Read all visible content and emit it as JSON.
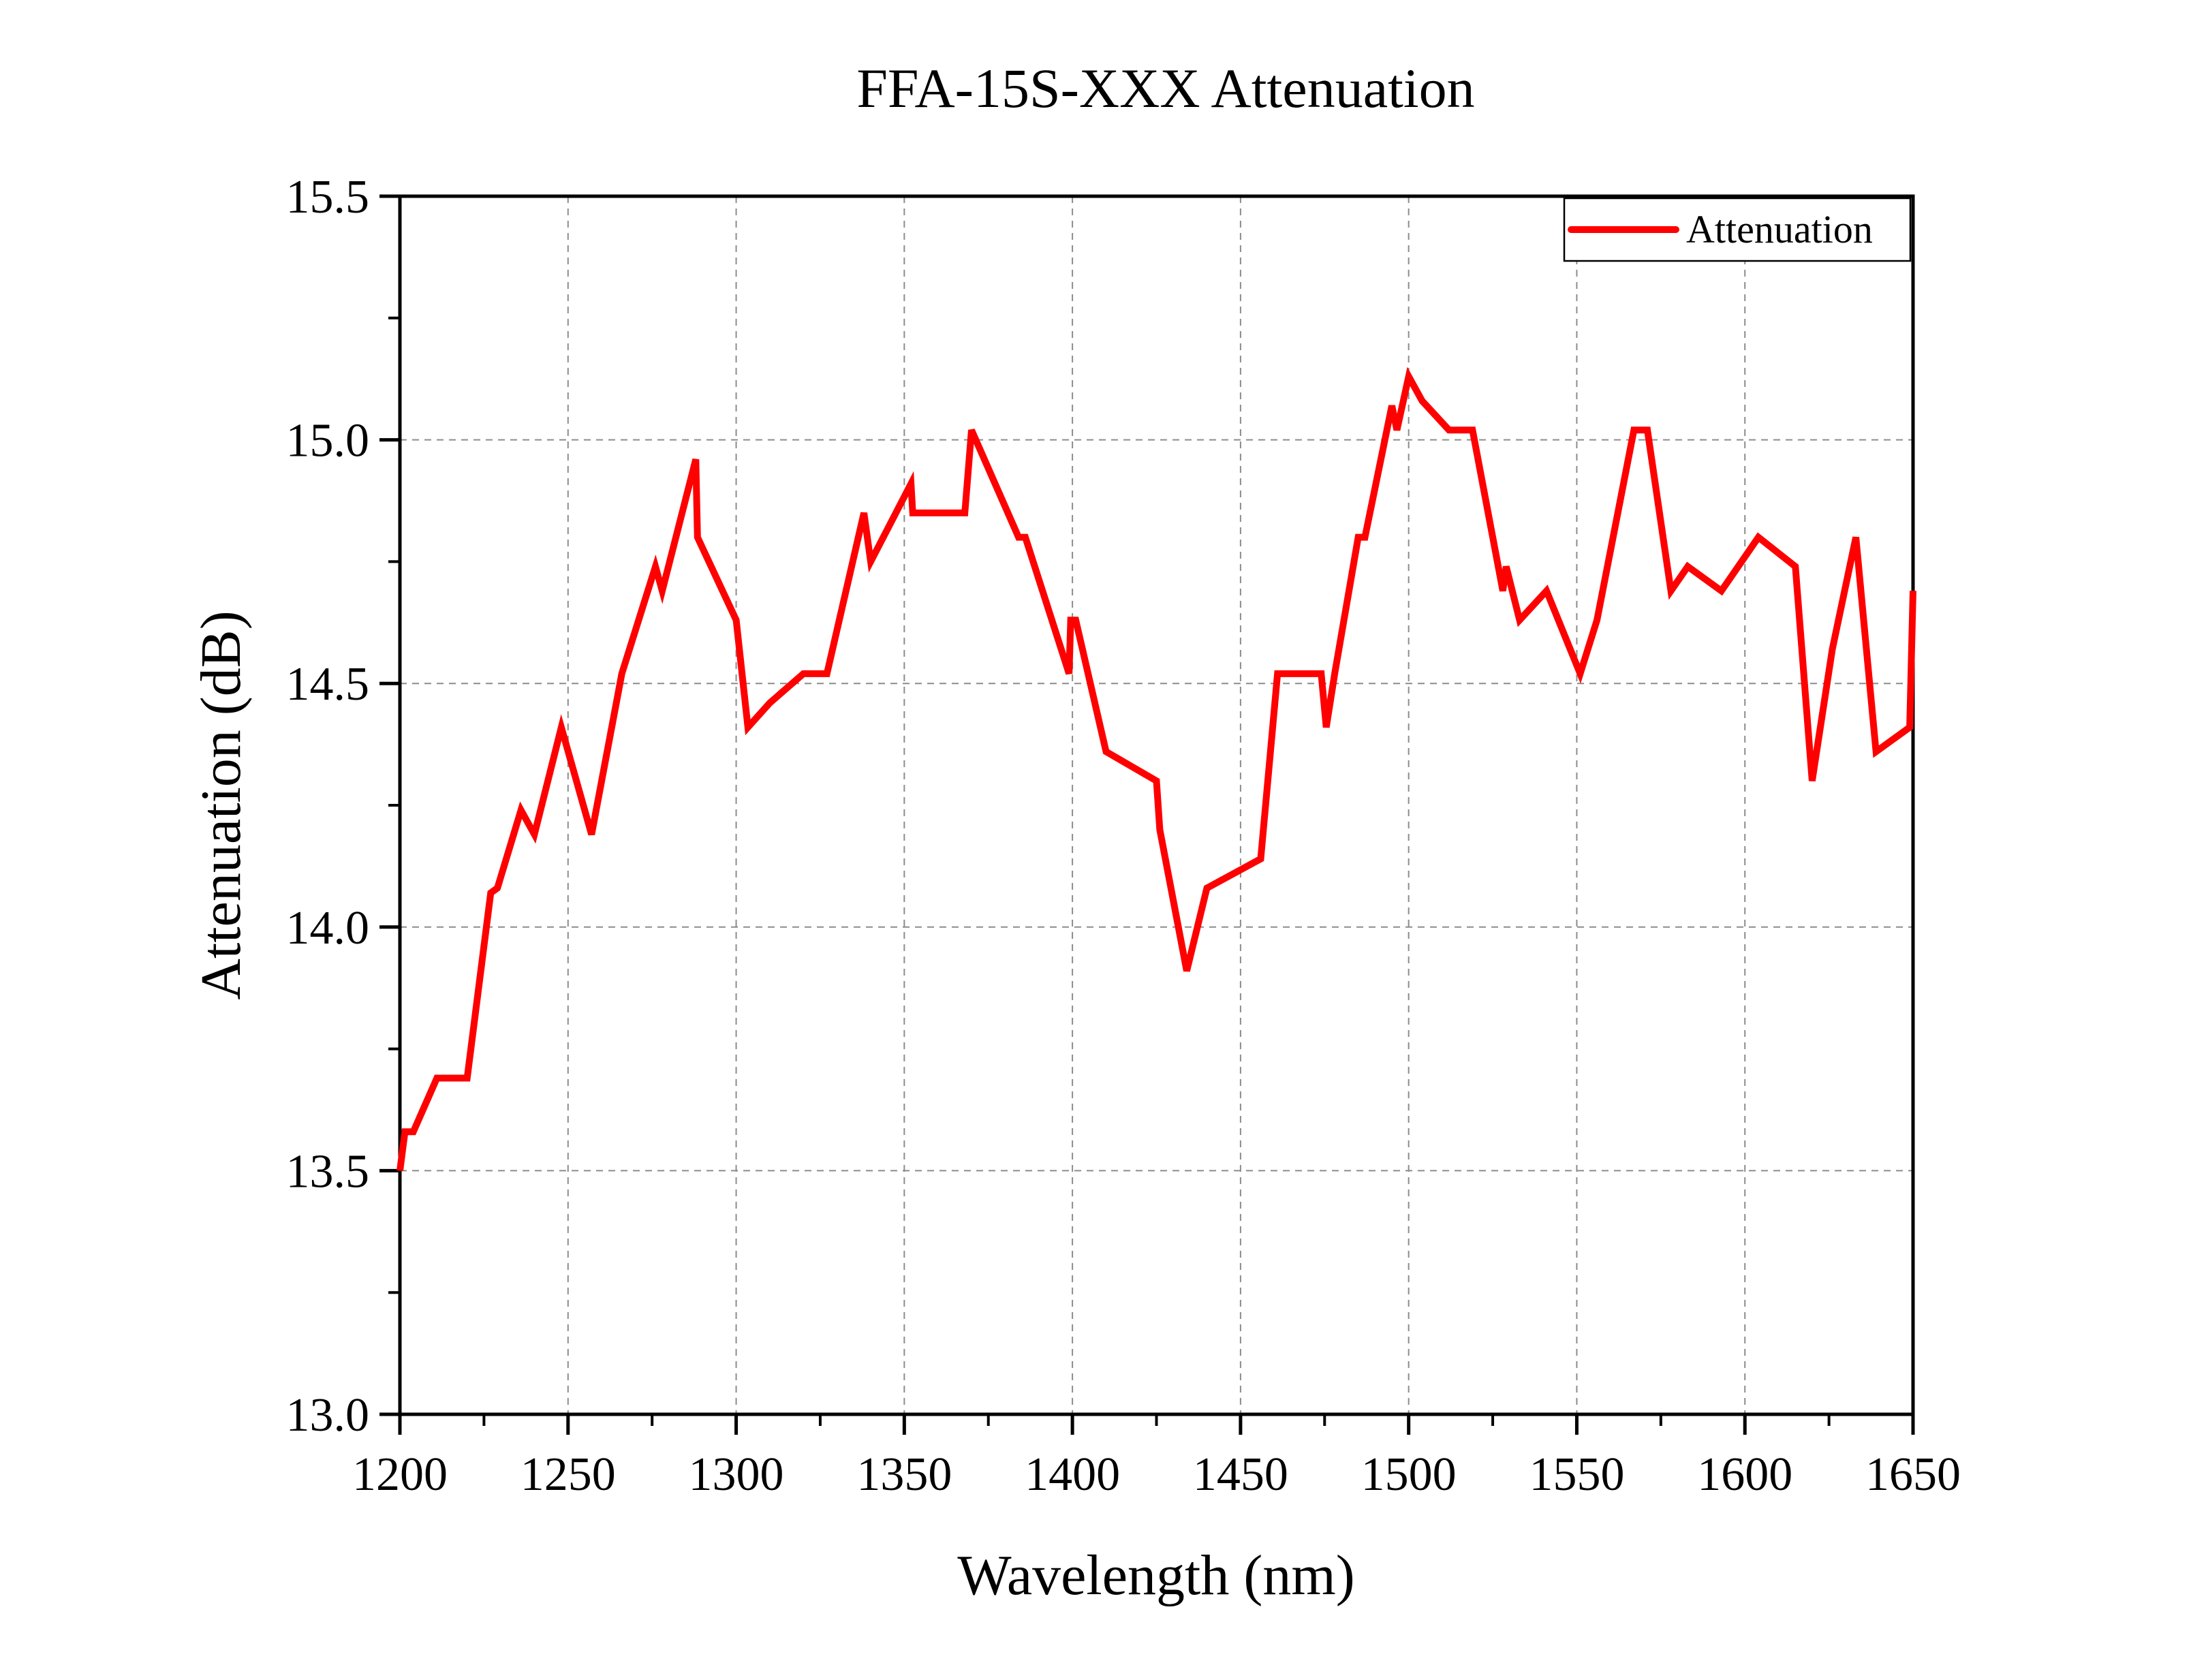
{
  "chart_data": {
    "type": "line",
    "title": "FFA-15S-XXX Attenuation",
    "xlabel": "Wavelength (nm)",
    "ylabel": "Attenuation (dB)",
    "xlim": [
      1200,
      1650
    ],
    "ylim": [
      13.0,
      15.5
    ],
    "x_ticks": [
      1200,
      1250,
      1300,
      1350,
      1400,
      1450,
      1500,
      1550,
      1600,
      1650
    ],
    "x_tick_labels": [
      "1200",
      "1250",
      "1300",
      "1350",
      "1400",
      "1450",
      "1500",
      "1550",
      "1600",
      "1650"
    ],
    "y_ticks": [
      13.0,
      13.5,
      14.0,
      14.5,
      15.0,
      15.5
    ],
    "y_tick_labels": [
      "13.0",
      "13.5",
      "14.0",
      "14.5",
      "15.0",
      "15.5"
    ],
    "grid": true,
    "legend": "top-right",
    "series": [
      {
        "name": "Attenuation",
        "color": "#ff0000",
        "x": [
          1200,
          1201.5,
          1204,
          1211,
          1220,
          1227,
          1229,
          1236,
          1240,
          1248,
          1257,
          1266,
          1276,
          1278,
          1288,
          1288.5,
          1300,
          1303.5,
          1310,
          1320,
          1327,
          1338,
          1340,
          1352,
          1352.5,
          1368,
          1370,
          1384,
          1386,
          1399,
          1399.5,
          1401,
          1410,
          1425,
          1426,
          1434,
          1440,
          1456,
          1461,
          1474,
          1475.5,
          1478,
          1485,
          1487,
          1495,
          1496.5,
          1500,
          1504,
          1512,
          1519,
          1528,
          1529,
          1533,
          1541,
          1551,
          1556,
          1567,
          1571,
          1578,
          1583,
          1593,
          1604,
          1615,
          1620,
          1626,
          1633,
          1639,
          1649,
          1650
        ],
        "values": [
          13.5,
          13.58,
          13.58,
          13.69,
          13.69,
          14.07,
          14.08,
          14.24,
          14.19,
          14.41,
          14.19,
          14.52,
          14.74,
          14.69,
          14.96,
          14.8,
          14.63,
          14.41,
          14.46,
          14.52,
          14.52,
          14.85,
          14.75,
          14.91,
          14.85,
          14.85,
          15.02,
          14.8,
          14.8,
          14.52,
          14.63,
          14.63,
          14.36,
          14.3,
          14.2,
          13.91,
          14.08,
          14.14,
          14.52,
          14.52,
          14.41,
          14.52,
          14.8,
          14.8,
          15.07,
          15.02,
          15.13,
          15.08,
          15.02,
          15.02,
          14.69,
          14.74,
          14.63,
          14.69,
          14.52,
          14.63,
          15.02,
          15.02,
          14.69,
          14.74,
          14.69,
          14.8,
          14.74,
          14.3,
          14.57,
          14.8,
          14.36,
          14.41,
          14.69
        ]
      }
    ]
  }
}
